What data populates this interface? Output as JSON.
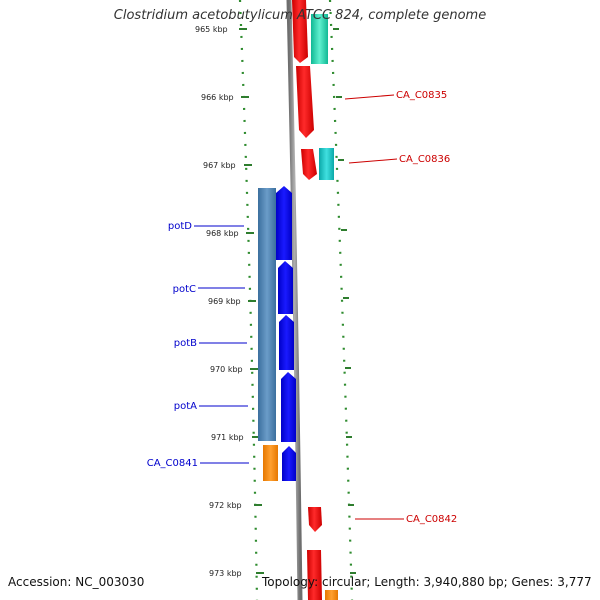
{
  "title": "Clostridium acetobutylicum ATCC 824, complete genome",
  "accession": "Accession: NC_003030",
  "topology": "Topology: circular; Length: 3,940,880 bp; Genes: 3,777",
  "colors": {
    "backbone": "#8c8c8c",
    "tick_dots": "#2e8b2e",
    "reverse_label": "#0000cc",
    "forward_label": "#cc0000",
    "blue_cds": "#0000ee",
    "red_cds": "#ee0000",
    "steel_feature": "#4f86b8",
    "orange_feature": "#ff8c00",
    "teal_feature": "#22d3b5",
    "cyan_feature": "#18c8c8"
  },
  "ticks": [
    "965 kbp",
    "966 kbp",
    "967 kbp",
    "968 kbp",
    "969 kbp",
    "970 kbp",
    "971 kbp",
    "972 kbp",
    "973 kbp"
  ],
  "gene_labels": [
    {
      "name": "CA_C0835",
      "strand": "forward"
    },
    {
      "name": "CA_C0836",
      "strand": "forward"
    },
    {
      "name": "potD",
      "strand": "reverse"
    },
    {
      "name": "potC",
      "strand": "reverse"
    },
    {
      "name": "potB",
      "strand": "reverse"
    },
    {
      "name": "potA",
      "strand": "reverse"
    },
    {
      "name": "CA_C0841",
      "strand": "reverse"
    },
    {
      "name": "CA_C0842",
      "strand": "forward"
    }
  ]
}
